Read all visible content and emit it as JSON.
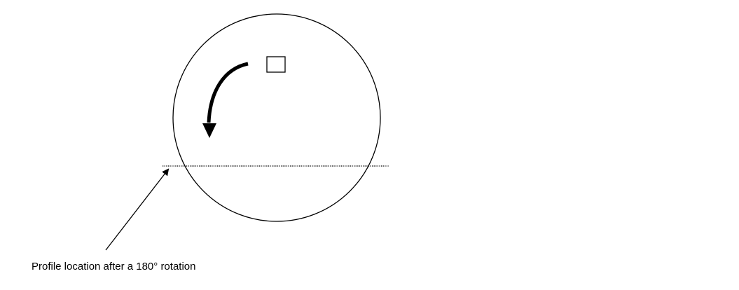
{
  "diagram": {
    "caption": "Profile location after a 180° rotation",
    "colors": {
      "stroke": "#000000",
      "background": "#ffffff"
    },
    "elements": {
      "circle": "outline-circle",
      "marker": "small-square",
      "rotation_arrow": "curved-arrow",
      "profile_line": "dotted-line",
      "pointer": "pointer-arrow"
    }
  }
}
